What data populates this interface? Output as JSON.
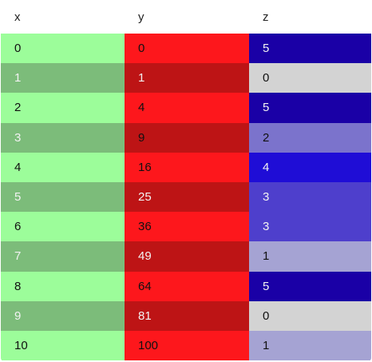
{
  "table": {
    "columns": [
      "x",
      "y",
      "z"
    ],
    "rows": [
      {
        "x": "0",
        "y": "0",
        "z": "5",
        "x_bg": "#9cfd9a",
        "y_bg": "#fd171c",
        "z_bg": "#1a00a6",
        "x_fg": "dark",
        "y_fg": "dark",
        "z_fg": "light"
      },
      {
        "x": "1",
        "y": "1",
        "z": "0",
        "x_bg": "#7cbc7a",
        "y_bg": "#bd1415",
        "z_bg": "#d3d3d3",
        "x_fg": "light",
        "y_fg": "light",
        "z_fg": "dark"
      },
      {
        "x": "2",
        "y": "4",
        "z": "5",
        "x_bg": "#9cfd9a",
        "y_bg": "#fd171c",
        "z_bg": "#1a00a6",
        "x_fg": "dark",
        "y_fg": "dark",
        "z_fg": "light"
      },
      {
        "x": "3",
        "y": "9",
        "z": "2",
        "x_bg": "#7cbc7a",
        "y_bg": "#bd1415",
        "z_bg": "#7b73cc",
        "x_fg": "light",
        "y_fg": "dark",
        "z_fg": "dark"
      },
      {
        "x": "4",
        "y": "16",
        "z": "4",
        "x_bg": "#9cfd9a",
        "y_bg": "#fd171c",
        "z_bg": "#1f0dd6",
        "x_fg": "dark",
        "y_fg": "dark",
        "z_fg": "light"
      },
      {
        "x": "5",
        "y": "25",
        "z": "3",
        "x_bg": "#7cbc7a",
        "y_bg": "#bd1415",
        "z_bg": "#4e3fcc",
        "x_fg": "light",
        "y_fg": "light",
        "z_fg": "light"
      },
      {
        "x": "6",
        "y": "36",
        "z": "3",
        "x_bg": "#9cfd9a",
        "y_bg": "#fd171c",
        "z_bg": "#4e3fcc",
        "x_fg": "dark",
        "y_fg": "dark",
        "z_fg": "light"
      },
      {
        "x": "7",
        "y": "49",
        "z": "1",
        "x_bg": "#7cbc7a",
        "y_bg": "#bd1415",
        "z_bg": "#a5a3d3",
        "x_fg": "light",
        "y_fg": "light",
        "z_fg": "dark"
      },
      {
        "x": "8",
        "y": "64",
        "z": "5",
        "x_bg": "#9cfd9a",
        "y_bg": "#fd171c",
        "z_bg": "#1a00a6",
        "x_fg": "dark",
        "y_fg": "dark",
        "z_fg": "light"
      },
      {
        "x": "9",
        "y": "81",
        "z": "0",
        "x_bg": "#7cbc7a",
        "y_bg": "#bd1415",
        "z_bg": "#d3d3d3",
        "x_fg": "light",
        "y_fg": "light",
        "z_fg": "dark"
      },
      {
        "x": "10",
        "y": "100",
        "z": "1",
        "x_bg": "#9cfd9a",
        "y_bg": "#fd171c",
        "z_bg": "#a5a3d3",
        "x_fg": "dark",
        "y_fg": "dark",
        "z_fg": "dark"
      }
    ]
  }
}
